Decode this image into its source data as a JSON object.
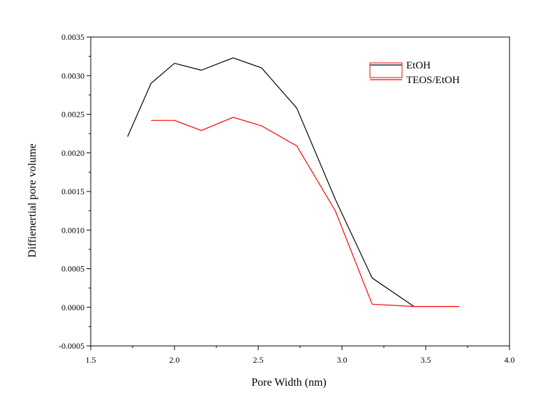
{
  "chart_data": {
    "type": "line",
    "xlabel": "Pore Width (nm)",
    "ylabel": "Diffienertial pore volume",
    "xlim": [
      1.5,
      4.0
    ],
    "ylim": [
      -0.0005,
      0.0035
    ],
    "xticks": [
      "1.5",
      "2.0",
      "2.5",
      "3.0",
      "3.5",
      "4.0"
    ],
    "yticks": [
      "-0.0005",
      "0.0000",
      "0.0005",
      "0.0010",
      "0.0015",
      "0.0020",
      "0.0025",
      "0.0030",
      "0.0035"
    ],
    "grid": false,
    "legend_position": "top-right",
    "series": [
      {
        "name": "EtOH",
        "color": "#000000",
        "points": [
          [
            1.72,
            0.00221
          ],
          [
            1.86,
            0.0029
          ],
          [
            2.0,
            0.00316
          ],
          [
            2.16,
            0.00307
          ],
          [
            2.35,
            0.00323
          ],
          [
            2.52,
            0.0031
          ],
          [
            2.73,
            0.00258
          ],
          [
            2.96,
            0.0014
          ],
          [
            3.18,
            0.00038
          ],
          [
            3.43,
            1e-05
          ]
        ]
      },
      {
        "name": "TEOS/EtOH",
        "color": "#ff0000",
        "points": [
          [
            1.86,
            0.00242
          ],
          [
            2.0,
            0.00242
          ],
          [
            2.16,
            0.00229
          ],
          [
            2.35,
            0.00246
          ],
          [
            2.52,
            0.00235
          ],
          [
            2.73,
            0.00209
          ],
          [
            2.96,
            0.00125
          ],
          [
            3.18,
            4e-05
          ],
          [
            3.43,
            1e-05
          ],
          [
            3.7,
            1e-05
          ]
        ]
      }
    ]
  }
}
